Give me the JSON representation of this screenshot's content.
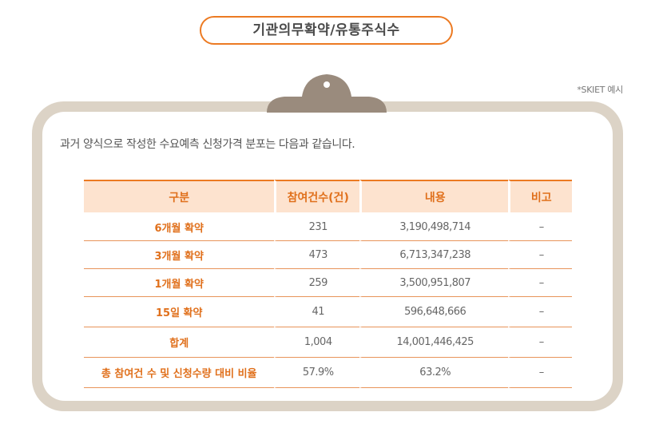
{
  "title": "기관의무확약/유통주식수",
  "note": "*SKIET 예시",
  "intro": "과거 양식으로 작성한 수요예측 신청가격 분포는 다음과 같습니다.",
  "colors": {
    "accent": "#ec7a22",
    "header_bg": "#fde3cf",
    "board": "#dcd3c6",
    "clip": "#9a8b7d"
  },
  "table": {
    "headers": [
      "구분",
      "참여건수(건)",
      "내용",
      "비고"
    ],
    "rows": [
      {
        "label": "6개월 확약",
        "count": "231",
        "content": "3,190,498,714",
        "note": "–"
      },
      {
        "label": "3개월 확약",
        "count": "473",
        "content": "6,713,347,238",
        "note": "–"
      },
      {
        "label": "1개월 확약",
        "count": "259",
        "content": "3,500,951,807",
        "note": "–"
      },
      {
        "label": "15일 확약",
        "count": "41",
        "content": "596,648,666",
        "note": "–"
      },
      {
        "label": "합계",
        "count": "1,004",
        "content": "14,001,446,425",
        "note": "–"
      },
      {
        "label": "총 참여건 수 및 신청수량 대비 비율",
        "count": "57.9%",
        "content": "63.2%",
        "note": "–"
      }
    ]
  }
}
